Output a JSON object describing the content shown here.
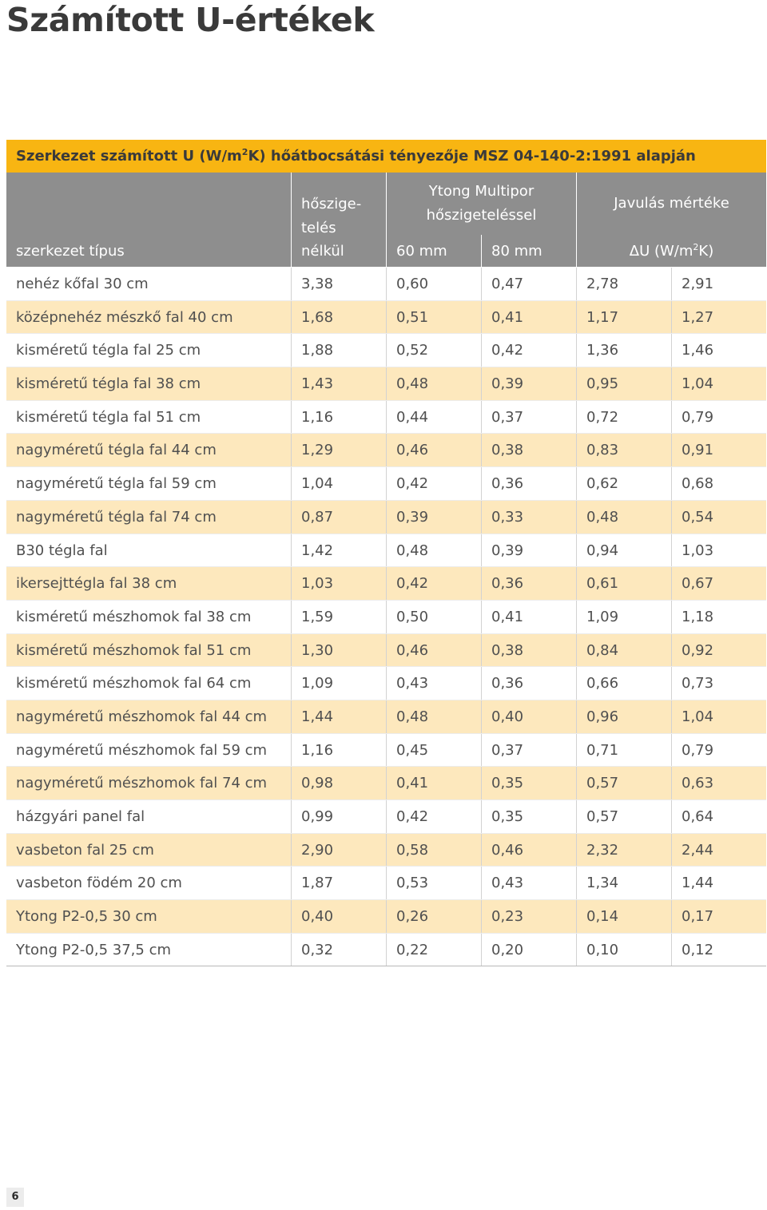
{
  "page": {
    "title": "Számított U-értékek",
    "page_number": "6"
  },
  "table": {
    "caption_pre": "Szerkezet számított U (W/m",
    "caption_sup": "2",
    "caption_post": "K) hőátbocsátási tényezője MSZ 04-140-2:1991 alapján",
    "headers": {
      "col1": "szerkezet típus",
      "col2_line1": "hőszige-",
      "col2_line2": "telés",
      "col2_line3": "nélkül",
      "group1_line1": "Ytong Multipor",
      "group1_line2": "hőszigeteléssel",
      "sub_60": "60 mm",
      "sub_80": "80 mm",
      "group2": "Javulás mértéke",
      "unit_pre": "ΔU (W/m",
      "unit_sup": "2",
      "unit_post": "K)"
    },
    "rows": [
      [
        "nehéz kőfal 30 cm",
        "3,38",
        "0,60",
        "0,47",
        "2,78",
        "2,91"
      ],
      [
        "középnehéz mészkő fal 40 cm",
        "1,68",
        "0,51",
        "0,41",
        "1,17",
        "1,27"
      ],
      [
        "kisméretű tégla fal 25 cm",
        "1,88",
        "0,52",
        "0,42",
        "1,36",
        "1,46"
      ],
      [
        "kisméretű tégla fal 38 cm",
        "1,43",
        "0,48",
        "0,39",
        "0,95",
        "1,04"
      ],
      [
        "kisméretű tégla fal 51 cm",
        "1,16",
        "0,44",
        "0,37",
        "0,72",
        "0,79"
      ],
      [
        "nagyméretű tégla fal 44 cm",
        "1,29",
        "0,46",
        "0,38",
        "0,83",
        "0,91"
      ],
      [
        "nagyméretű tégla fal 59 cm",
        "1,04",
        "0,42",
        "0,36",
        "0,62",
        "0,68"
      ],
      [
        "nagyméretű tégla fal 74 cm",
        "0,87",
        "0,39",
        "0,33",
        "0,48",
        "0,54"
      ],
      [
        "B30 tégla fal",
        "1,42",
        "0,48",
        "0,39",
        "0,94",
        "1,03"
      ],
      [
        "ikersejttégla fal 38 cm",
        "1,03",
        "0,42",
        "0,36",
        "0,61",
        "0,67"
      ],
      [
        "kisméretű mészhomok fal 38 cm",
        "1,59",
        "0,50",
        "0,41",
        "1,09",
        "1,18"
      ],
      [
        "kisméretű mészhomok fal 51 cm",
        "1,30",
        "0,46",
        "0,38",
        "0,84",
        "0,92"
      ],
      [
        "kisméretű mészhomok fal 64 cm",
        "1,09",
        "0,43",
        "0,36",
        "0,66",
        "0,73"
      ],
      [
        "nagyméretű mészhomok fal 44 cm",
        "1,44",
        "0,48",
        "0,40",
        "0,96",
        "1,04"
      ],
      [
        "nagyméretű mészhomok fal 59 cm",
        "1,16",
        "0,45",
        "0,37",
        "0,71",
        "0,79"
      ],
      [
        "nagyméretű mészhomok fal 74 cm",
        "0,98",
        "0,41",
        "0,35",
        "0,57",
        "0,63"
      ],
      [
        "házgyári panel fal",
        "0,99",
        "0,42",
        "0,35",
        "0,57",
        "0,64"
      ],
      [
        "vasbeton fal 25 cm",
        "2,90",
        "0,58",
        "0,46",
        "2,32",
        "2,44"
      ],
      [
        "vasbeton födém 20 cm",
        "1,87",
        "0,53",
        "0,43",
        "1,34",
        "1,44"
      ],
      [
        "Ytong P2-0,5 30 cm",
        "0,40",
        "0,26",
        "0,23",
        "0,14",
        "0,17"
      ],
      [
        "Ytong P2-0,5 37,5 cm",
        "0,32",
        "0,22",
        "0,20",
        "0,10",
        "0,12"
      ]
    ]
  }
}
